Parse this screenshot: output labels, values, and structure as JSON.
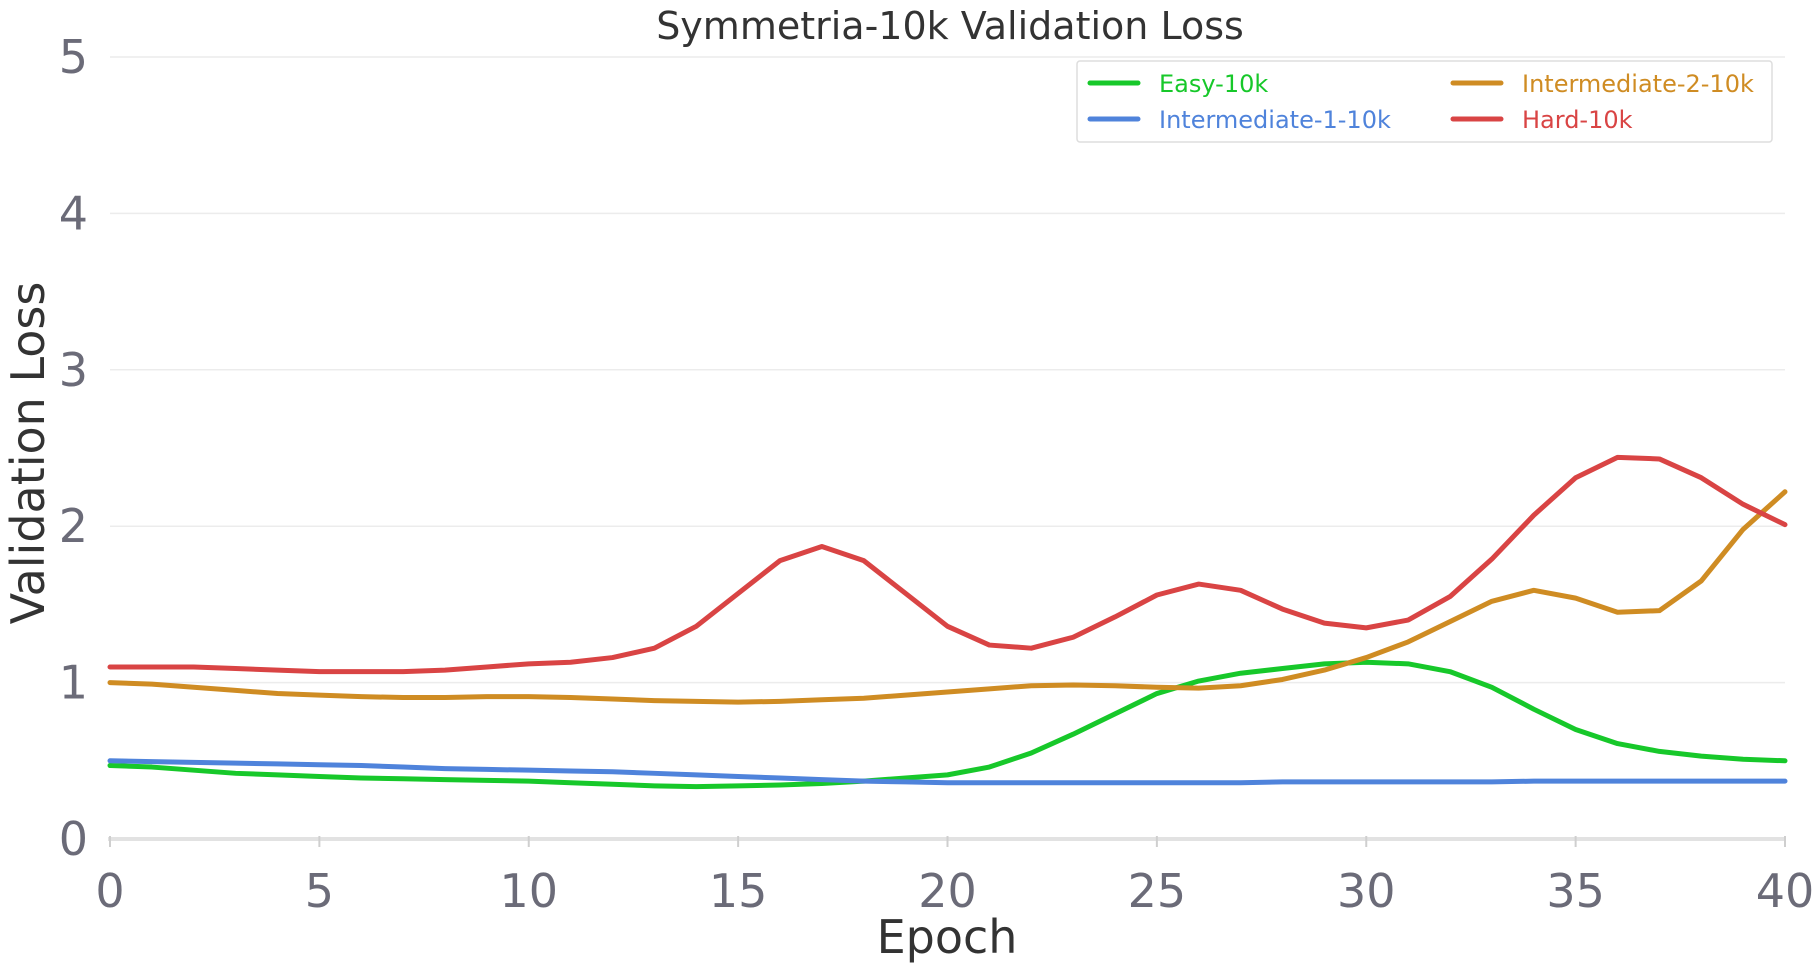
{
  "chart_data": {
    "type": "line",
    "title": "Symmetria-10k Validation Loss",
    "xlabel": "Epoch",
    "ylabel": "Validation Loss",
    "xlim": [
      0,
      40
    ],
    "ylim": [
      0,
      5
    ],
    "x_ticks": [
      "0",
      "5",
      "10",
      "15",
      "20",
      "25",
      "30",
      "35",
      "40"
    ],
    "y_ticks": [
      "0",
      "1",
      "2",
      "3",
      "4",
      "5"
    ],
    "grid": true,
    "legend_position": "top-right",
    "x": [
      0,
      1,
      2,
      3,
      4,
      5,
      6,
      7,
      8,
      9,
      10,
      11,
      12,
      13,
      14,
      15,
      16,
      17,
      18,
      19,
      20,
      21,
      22,
      23,
      24,
      25,
      26,
      27,
      28,
      29,
      30,
      31,
      32,
      33,
      34,
      35,
      36,
      37,
      38,
      39,
      40
    ],
    "series": [
      {
        "name": "Easy-10k",
        "color": "#17c82a",
        "values": [
          0.47,
          0.46,
          0.44,
          0.42,
          0.41,
          0.4,
          0.39,
          0.385,
          0.38,
          0.375,
          0.37,
          0.36,
          0.35,
          0.34,
          0.335,
          0.34,
          0.345,
          0.355,
          0.37,
          0.39,
          0.41,
          0.46,
          0.55,
          0.67,
          0.8,
          0.93,
          1.01,
          1.06,
          1.09,
          1.12,
          1.13,
          1.12,
          1.07,
          0.97,
          0.83,
          0.7,
          0.61,
          0.56,
          0.53,
          0.51,
          0.5
        ]
      },
      {
        "name": "Intermediate-1-10k",
        "color": "#4f83db",
        "values": [
          0.5,
          0.495,
          0.49,
          0.485,
          0.48,
          0.475,
          0.47,
          0.46,
          0.45,
          0.445,
          0.44,
          0.435,
          0.43,
          0.42,
          0.41,
          0.4,
          0.39,
          0.38,
          0.37,
          0.365,
          0.36,
          0.36,
          0.36,
          0.36,
          0.36,
          0.36,
          0.36,
          0.36,
          0.365,
          0.365,
          0.365,
          0.365,
          0.365,
          0.365,
          0.37,
          0.37,
          0.37,
          0.37,
          0.37,
          0.37,
          0.37
        ]
      },
      {
        "name": "Intermediate-2-10k",
        "color": "#cf8c23",
        "values": [
          1.0,
          0.99,
          0.97,
          0.95,
          0.93,
          0.92,
          0.91,
          0.905,
          0.905,
          0.91,
          0.91,
          0.905,
          0.895,
          0.885,
          0.88,
          0.875,
          0.88,
          0.89,
          0.9,
          0.92,
          0.94,
          0.96,
          0.98,
          0.985,
          0.98,
          0.97,
          0.965,
          0.98,
          1.02,
          1.08,
          1.16,
          1.26,
          1.39,
          1.52,
          1.59,
          1.54,
          1.45,
          1.46,
          1.65,
          1.98,
          2.22
        ]
      },
      {
        "name": "Hard-10k",
        "color": "#d94444",
        "values": [
          1.1,
          1.1,
          1.1,
          1.09,
          1.08,
          1.07,
          1.07,
          1.07,
          1.08,
          1.1,
          1.12,
          1.13,
          1.16,
          1.22,
          1.36,
          1.57,
          1.78,
          1.87,
          1.78,
          1.57,
          1.36,
          1.24,
          1.22,
          1.29,
          1.42,
          1.56,
          1.63,
          1.59,
          1.47,
          1.38,
          1.35,
          1.4,
          1.55,
          1.79,
          2.07,
          2.31,
          2.44,
          2.43,
          2.31,
          2.14,
          2.01
        ]
      }
    ]
  }
}
